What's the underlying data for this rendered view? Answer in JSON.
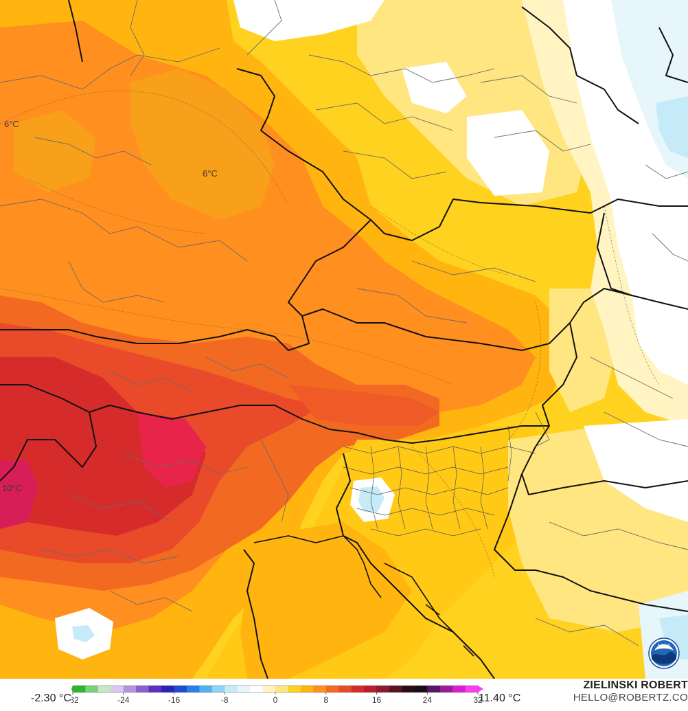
{
  "map": {
    "contour_labels": [
      "6°C",
      "6°C",
      "10°C"
    ]
  },
  "legend": {
    "min_label": "-2.30 °C",
    "max_label": "11.40 °C",
    "ticks": [
      "-32",
      "-24",
      "-16",
      "-8",
      "0",
      "8",
      "16",
      "24",
      "32"
    ],
    "tick_values": [
      -32,
      -24,
      -16,
      -8,
      0,
      8,
      16,
      24,
      32
    ],
    "range": [
      -32,
      32
    ],
    "colors": [
      "#2fb52f",
      "#7bd27b",
      "#c3e8c3",
      "#d9c7ec",
      "#b493dd",
      "#8e5dd0",
      "#5d2fc4",
      "#2a22b8",
      "#1f4bd6",
      "#2c7fe6",
      "#4fb3ef",
      "#8fd3f5",
      "#c6ebf8",
      "#e6f6fb",
      "#ffffff",
      "#fff4c2",
      "#ffe680",
      "#ffd21f",
      "#ffb40f",
      "#ff8f1f",
      "#f26a22",
      "#e94b2a",
      "#d52b2b",
      "#b81e2e",
      "#8d1a2c",
      "#5a1422",
      "#2a0d14",
      "#1a0a1a",
      "#5c1464",
      "#9a1c96",
      "#d81ed1",
      "#ff3df0"
    ]
  },
  "credits": {
    "name": "ZIELINSKI ROBERT",
    "email": "HELLO@ROBERTZ.CO"
  },
  "logo": {
    "name": "noaa-logo",
    "text": "NOAA"
  }
}
